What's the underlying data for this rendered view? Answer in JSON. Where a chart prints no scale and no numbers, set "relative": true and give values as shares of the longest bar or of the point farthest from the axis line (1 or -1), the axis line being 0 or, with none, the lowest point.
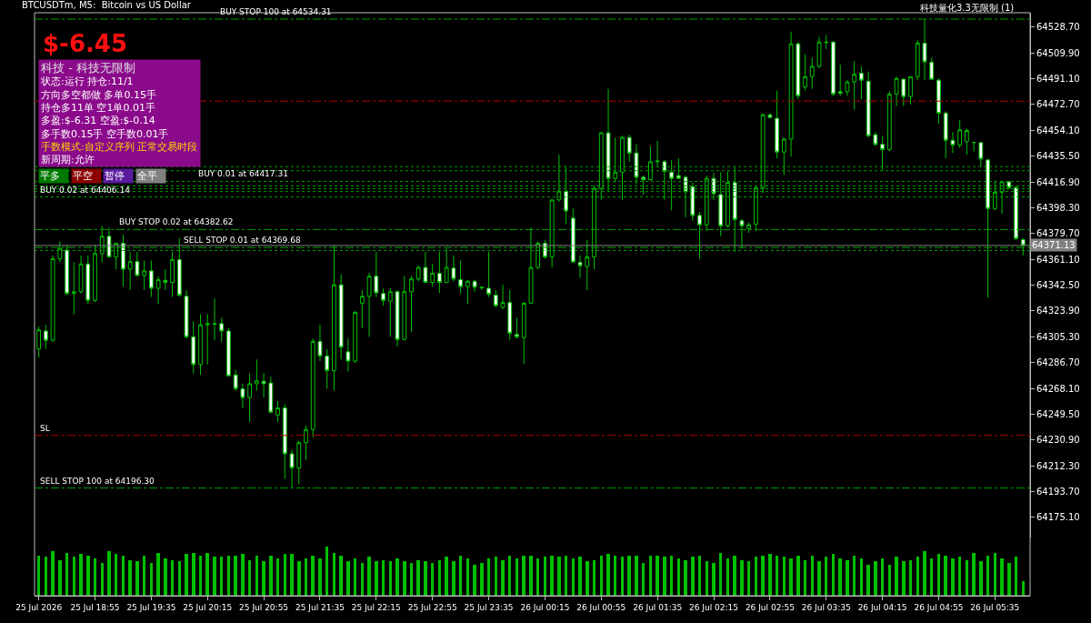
{
  "chart_data": [
    {
      "type": "candlestick",
      "title": "BTCUSDTm, M5:  Bitcoin vs US Dollar",
      "x": [
        "2026-07-25T18:15",
        "2026-07-25T18:20",
        "2026-07-25T18:25",
        "2026-07-25T18:30",
        "2026-07-25T18:35",
        "2026-07-25T18:40",
        "2026-07-25T18:45",
        "2026-07-25T18:50",
        "2026-07-25T18:55",
        "2026-07-25T19:00",
        "2026-07-25T19:05",
        "2026-07-25T19:10",
        "2026-07-25T19:15",
        "2026-07-25T19:20",
        "2026-07-25T19:25",
        "2026-07-25T19:30",
        "2026-07-25T19:35",
        "2026-07-25T19:40",
        "2026-07-25T19:45",
        "2026-07-25T19:50",
        "2026-07-25T19:55",
        "2026-07-25T20:00",
        "2026-07-25T20:05",
        "2026-07-25T20:10",
        "2026-07-25T20:15",
        "2026-07-25T20:20",
        "2026-07-25T20:25",
        "2026-07-25T20:30",
        "2026-07-25T20:35",
        "2026-07-25T20:40",
        "2026-07-25T20:45",
        "2026-07-25T20:50",
        "2026-07-25T20:55",
        "2026-07-25T21:00",
        "2026-07-25T21:05",
        "2026-07-25T21:10",
        "2026-07-25T21:15",
        "2026-07-25T21:20",
        "2026-07-25T21:25",
        "2026-07-25T21:30",
        "2026-07-25T21:35",
        "2026-07-25T21:40",
        "2026-07-25T21:45",
        "2026-07-25T21:50",
        "2026-07-25T21:55",
        "2026-07-25T22:00",
        "2026-07-25T22:05",
        "2026-07-25T22:10",
        "2026-07-25T22:15",
        "2026-07-25T22:20",
        "2026-07-25T22:25",
        "2026-07-25T22:30",
        "2026-07-25T22:35",
        "2026-07-25T22:40",
        "2026-07-25T22:45",
        "2026-07-25T22:50",
        "2026-07-25T22:55",
        "2026-07-25T23:00",
        "2026-07-25T23:05",
        "2026-07-25T23:10",
        "2026-07-25T23:15",
        "2026-07-25T23:20",
        "2026-07-25T23:25",
        "2026-07-25T23:30",
        "2026-07-25T23:35",
        "2026-07-25T23:40",
        "2026-07-25T23:45",
        "2026-07-25T23:50",
        "2026-07-25T23:55",
        "2026-07-26T00:00",
        "2026-07-26T00:05",
        "2026-07-26T00:10",
        "2026-07-26T00:15",
        "2026-07-26T00:20",
        "2026-07-26T00:25",
        "2026-07-26T00:30",
        "2026-07-26T00:35",
        "2026-07-26T00:40",
        "2026-07-26T00:45",
        "2026-07-26T00:50",
        "2026-07-26T00:55",
        "2026-07-26T01:00",
        "2026-07-26T01:05",
        "2026-07-26T01:10",
        "2026-07-26T01:15",
        "2026-07-26T01:20",
        "2026-07-26T01:25",
        "2026-07-26T01:30",
        "2026-07-26T01:35",
        "2026-07-26T01:40",
        "2026-07-26T01:45",
        "2026-07-26T01:50",
        "2026-07-26T01:55",
        "2026-07-26T02:00",
        "2026-07-26T02:05",
        "2026-07-26T02:10",
        "2026-07-26T02:15",
        "2026-07-26T02:20",
        "2026-07-26T02:25",
        "2026-07-26T02:30",
        "2026-07-26T02:35",
        "2026-07-26T02:40",
        "2026-07-26T02:45",
        "2026-07-26T02:50",
        "2026-07-26T02:55",
        "2026-07-26T03:00",
        "2026-07-26T03:05",
        "2026-07-26T03:10",
        "2026-07-26T03:15",
        "2026-07-26T03:20",
        "2026-07-26T03:25",
        "2026-07-26T03:30",
        "2026-07-26T03:35",
        "2026-07-26T03:40",
        "2026-07-26T03:45",
        "2026-07-26T03:50",
        "2026-07-26T03:55",
        "2026-07-26T04:00",
        "2026-07-26T04:05",
        "2026-07-26T04:10",
        "2026-07-26T04:15",
        "2026-07-26T04:20",
        "2026-07-26T04:25",
        "2026-07-26T04:30",
        "2026-07-26T04:35",
        "2026-07-26T04:40",
        "2026-07-26T04:45",
        "2026-07-26T04:50",
        "2026-07-26T04:55",
        "2026-07-26T05:00",
        "2026-07-26T05:05",
        "2026-07-26T05:10",
        "2026-07-26T05:15",
        "2026-07-26T05:20",
        "2026-07-26T05:25",
        "2026-07-26T05:30",
        "2026-07-26T05:35",
        "2026-07-26T05:40",
        "2026-07-26T05:45",
        "2026-07-26T05:50",
        "2026-07-26T05:55"
      ],
      "ohlc": [
        [
          64296.5,
          64312.8,
          64290.3,
          64310.3
        ],
        [
          64309.5,
          64314,
          64296.5,
          64302.8
        ],
        [
          64302.8,
          64364,
          64301.5,
          64361.5
        ],
        [
          64361.5,
          64374,
          64359,
          64369
        ],
        [
          64367.8,
          64371.5,
          64335.3,
          64336.5
        ],
        [
          64336.5,
          64359,
          64321.5,
          64337.8
        ],
        [
          64337.8,
          64364,
          64336.5,
          64357.8
        ],
        [
          64357.8,
          64364,
          64329,
          64331.5
        ],
        [
          64331.5,
          64371.5,
          64330.3,
          64365.3
        ],
        [
          64365.3,
          64385.3,
          64359,
          64377.8
        ],
        [
          64377.8,
          64384,
          64362.5,
          64362.8
        ],
        [
          64362.8,
          64372.8,
          64354,
          64372.8
        ],
        [
          64372.8,
          64379,
          64341.5,
          64354
        ],
        [
          64354,
          64366.5,
          64339,
          64359.5
        ],
        [
          64359.5,
          64366.5,
          64349,
          64349.5
        ],
        [
          64349.5,
          64360.3,
          64339,
          64352.8
        ],
        [
          64352.8,
          64360.3,
          64334,
          64340.3
        ],
        [
          64340.3,
          64349,
          64329,
          64346.5
        ],
        [
          64346,
          64354,
          64339,
          64344.5
        ],
        [
          64344.5,
          64366.5,
          64334,
          64361
        ],
        [
          64361,
          64376.5,
          64334,
          64335.3
        ],
        [
          64334.5,
          64339,
          64304,
          64305.3
        ],
        [
          64305.3,
          64316.5,
          64279,
          64285.3
        ],
        [
          64285.3,
          64321.5,
          64277.8,
          64314
        ],
        [
          64314,
          64321.5,
          64285.3,
          64314.8
        ],
        [
          64314.8,
          64332.8,
          64302.8,
          64314.5
        ],
        [
          64314.8,
          64319,
          64301.5,
          64309.5
        ],
        [
          64309.5,
          64311.5,
          64277,
          64277.2
        ],
        [
          64277.8,
          64281.5,
          64266.5,
          64267.8
        ],
        [
          64267.8,
          64271.5,
          64254,
          64261.5
        ],
        [
          64261.5,
          64279,
          64244,
          64271.5
        ],
        [
          64271.5,
          64289,
          64266.5,
          64273.5
        ],
        [
          64273.3,
          64279,
          64261.5,
          64271.5
        ],
        [
          64272,
          64276.5,
          64250.3,
          64251
        ],
        [
          64249,
          64259,
          64244,
          64254
        ],
        [
          64254,
          64256.5,
          64202.8,
          64221
        ],
        [
          64221,
          64224,
          64196.5,
          64210.8
        ],
        [
          64210.8,
          64230.3,
          64199,
          64229
        ],
        [
          64229,
          64241.5,
          64216.5,
          64238.5
        ],
        [
          64238.5,
          64304,
          64232.8,
          64302
        ],
        [
          64302,
          64314,
          64287.8,
          64291.5
        ],
        [
          64291.5,
          64296.5,
          64267.8,
          64281
        ],
        [
          64281,
          64371.5,
          64266.5,
          64342.8
        ],
        [
          64342.8,
          64350.3,
          64289,
          64297.8
        ],
        [
          64294.5,
          64304,
          64280.3,
          64287.8
        ],
        [
          64287.8,
          64324,
          64286.5,
          64322.8
        ],
        [
          64329.5,
          64339,
          64311.5,
          64334.5
        ],
        [
          64334.5,
          64351.5,
          64305.3,
          64349
        ],
        [
          64349,
          64366.5,
          64334,
          64337
        ],
        [
          64336.5,
          64340.3,
          64327.8,
          64331.5
        ],
        [
          64331,
          64340.3,
          64305.3,
          64337.8
        ],
        [
          64337.8,
          64339,
          64298.5,
          64303.3
        ],
        [
          64303.3,
          64349,
          64302.8,
          64337.8
        ],
        [
          64337.8,
          64349,
          64309,
          64347
        ],
        [
          64347,
          64356.5,
          64345.3,
          64355.3
        ],
        [
          64355.3,
          64366.5,
          64344,
          64344.5
        ],
        [
          64344.5,
          64357.8,
          64341.5,
          64351
        ],
        [
          64351,
          64366.5,
          64337,
          64344.5
        ],
        [
          64344.5,
          64369,
          64344,
          64355.3
        ],
        [
          64354.8,
          64364,
          64345.3,
          64347
        ],
        [
          64346.5,
          64360.3,
          64336.5,
          64341.5
        ],
        [
          64341.5,
          64346,
          64329,
          64345.3
        ],
        [
          64345.3,
          64346.5,
          64337.8,
          64341
        ],
        [
          64340.8,
          64341.5,
          64339,
          64341
        ],
        [
          64340.3,
          64366.5,
          64334,
          64336
        ],
        [
          64335.3,
          64339,
          64326.5,
          64327.8
        ],
        [
          64326.5,
          64342.8,
          64325.3,
          64330
        ],
        [
          64330,
          64339,
          64302.8,
          64307.8
        ],
        [
          64307,
          64319,
          64304,
          64305.3
        ],
        [
          64304.8,
          64330.3,
          64286,
          64329.5
        ],
        [
          64329.5,
          64384,
          64329,
          64355.3
        ],
        [
          64355.3,
          64374,
          64354,
          64372.8
        ],
        [
          64372.8,
          64375.3,
          64361.5,
          64362.8
        ],
        [
          64362.8,
          64404,
          64355.3,
          64404
        ],
        [
          64404,
          64436.5,
          64402.8,
          64410.3
        ],
        [
          64410.3,
          64427.8,
          64386.5,
          64396
        ],
        [
          64390.8,
          64397.8,
          64359,
          64359.2
        ],
        [
          64359,
          64364,
          64347.8,
          64356.5
        ],
        [
          64356,
          64375.3,
          64339,
          64362.8
        ],
        [
          64362.8,
          64414,
          64354,
          64412.3
        ],
        [
          64412.3,
          64452.8,
          64404,
          64452.3
        ],
        [
          64452.3,
          64484,
          64410.3,
          64419.5
        ],
        [
          64419.5,
          64449,
          64416.5,
          64424
        ],
        [
          64424,
          64450.3,
          64404,
          64449
        ],
        [
          64449,
          64451,
          64431.5,
          64437.8
        ],
        [
          64437.8,
          64444,
          64415.3,
          64420.3
        ],
        [
          64420.3,
          64421.5,
          64407.8,
          64418.5
        ],
        [
          64418.5,
          64442.8,
          64417.8,
          64431.5
        ],
        [
          64431.5,
          64446.5,
          64427.8,
          64432
        ],
        [
          64431.5,
          64432.8,
          64404,
          64424.5
        ],
        [
          64424,
          64432.8,
          64396.5,
          64419.5
        ],
        [
          64421.5,
          64434,
          64419,
          64419.5
        ],
        [
          64420.3,
          64421.5,
          64391.5,
          64409.8
        ],
        [
          64413.5,
          64416.5,
          64389,
          64392.8
        ],
        [
          64392.8,
          64395.3,
          64361.5,
          64386
        ],
        [
          64386,
          64421.5,
          64381.5,
          64419.5
        ],
        [
          64419.5,
          64423.5,
          64404,
          64408.5
        ],
        [
          64407.8,
          64424,
          64377.8,
          64385.3
        ],
        [
          64385.3,
          64424.5,
          64384,
          64416.5
        ],
        [
          64416.5,
          64427.8,
          64366.5,
          64389.8
        ],
        [
          64389,
          64390.3,
          64369,
          64385.3
        ],
        [
          64383.3,
          64387.8,
          64380.3,
          64386
        ],
        [
          64386.5,
          64414,
          64381.5,
          64412.8
        ],
        [
          64412.8,
          64466.5,
          64409,
          64465.3
        ],
        [
          64465.3,
          64466.5,
          64462.8,
          64463.3
        ],
        [
          64462.8,
          64482.8,
          64434,
          64438.5
        ],
        [
          64438.5,
          64449,
          64422,
          64447.8
        ],
        [
          64447.8,
          64525.3,
          64435.3,
          64516.5
        ],
        [
          64516.5,
          64517.8,
          64476.5,
          64479
        ],
        [
          64485.3,
          64509,
          64482.8,
          64492.8
        ],
        [
          64492.8,
          64506.5,
          64484,
          64500.3
        ],
        [
          64500.3,
          64521.5,
          64499,
          64517.8
        ],
        [
          64517.8,
          64522.8,
          64512.8,
          64517.5
        ],
        [
          64517.8,
          64518.5,
          64479,
          64480.3
        ],
        [
          64482,
          64501.5,
          64479,
          64480.8
        ],
        [
          64482,
          64490.3,
          64479,
          64489
        ],
        [
          64489,
          64504,
          64469,
          64494.5
        ],
        [
          64495.3,
          64500.3,
          64476.5,
          64490.3
        ],
        [
          64489.5,
          64496.5,
          64449,
          64450.3
        ],
        [
          64451,
          64452.8,
          64442.8,
          64444
        ],
        [
          64444,
          64450.3,
          64425.3,
          64440.3
        ],
        [
          64440.3,
          64482,
          64439,
          64480.3
        ],
        [
          64480.3,
          64492.8,
          64471.5,
          64491.5
        ],
        [
          64491,
          64491.5,
          64471.5,
          64478.5
        ],
        [
          64478.5,
          64492.8,
          64472.8,
          64492.8
        ],
        [
          64492.8,
          64519,
          64490.3,
          64517
        ],
        [
          64517,
          64534,
          64490.3,
          64503.5
        ],
        [
          64503.3,
          64506.5,
          64490.3,
          64491
        ],
        [
          64490.3,
          64491.5,
          64459,
          64466.5
        ],
        [
          64466.5,
          64467.8,
          64434,
          64447
        ],
        [
          64447,
          64452.8,
          64437.8,
          64443.5
        ],
        [
          64443.5,
          64461.5,
          64441.5,
          64454.5
        ],
        [
          64446,
          64455.3,
          64436.5,
          64454
        ],
        [
          64445.3,
          64446,
          64439,
          64445.5
        ],
        [
          64445.3,
          64445.3,
          64427.8,
          64433.5
        ],
        [
          64432.8,
          64432.8,
          64333.5,
          64397.8
        ],
        [
          64397.8,
          64417.8,
          64396.5,
          64409.5
        ],
        [
          64409.5,
          64417.8,
          64394,
          64417
        ],
        [
          64417,
          64417.8,
          64411.5,
          64412.8
        ],
        [
          64412.8,
          64414,
          64375.3,
          64376
        ],
        [
          64375.3,
          64376.5,
          64364,
          64371.13
        ]
      ],
      "xlim": [
        "2026-07-25T18:12",
        "2026-07-26T06:00"
      ],
      "xticks": [
        {
          "value": "2026-07-25T18:15",
          "label": "25 Jul 2026"
        },
        {
          "value": "2026-07-25T18:55",
          "label": "25 Jul 18:55"
        },
        {
          "value": "2026-07-25T19:35",
          "label": "25 Jul 19:35"
        },
        {
          "value": "2026-07-25T20:15",
          "label": "25 Jul 20:15"
        },
        {
          "value": "2026-07-25T20:55",
          "label": "25 Jul 20:55"
        },
        {
          "value": "2026-07-25T21:35",
          "label": "25 Jul 21:35"
        },
        {
          "value": "2026-07-25T22:15",
          "label": "25 Jul 22:15"
        },
        {
          "value": "2026-07-25T22:55",
          "label": "25 Jul 22:55"
        },
        {
          "value": "2026-07-25T23:35",
          "label": "25 Jul 23:35"
        },
        {
          "value": "2026-07-26T00:15",
          "label": "26 Jul 00:15"
        },
        {
          "value": "2026-07-26T00:55",
          "label": "26 Jul 00:55"
        },
        {
          "value": "2026-07-26T01:35",
          "label": "26 Jul 01:35"
        },
        {
          "value": "2026-07-26T02:15",
          "label": "26 Jul 02:15"
        },
        {
          "value": "2026-07-26T02:55",
          "label": "26 Jul 02:55"
        },
        {
          "value": "2026-07-26T03:35",
          "label": "26 Jul 03:35"
        },
        {
          "value": "2026-07-26T04:15",
          "label": "26 Jul 04:15"
        },
        {
          "value": "2026-07-26T04:55",
          "label": "26 Jul 04:55"
        },
        {
          "value": "2026-07-26T05:35",
          "label": "26 Jul 05:35"
        }
      ],
      "ylim": [
        64160.7,
        64538.9
      ],
      "yticks": [
        {
          "value": 64528.7,
          "label": "64528.70"
        },
        {
          "value": 64509.9,
          "label": "64509.90"
        },
        {
          "value": 64491.1,
          "label": "64491.10"
        },
        {
          "value": 64472.7,
          "label": "64472.70"
        },
        {
          "value": 64454.1,
          "label": "64454.10"
        },
        {
          "value": 64435.5,
          "label": "64435.50"
        },
        {
          "value": 64416.9,
          "label": "64416.90"
        },
        {
          "value": 64398.3,
          "label": "64398.30"
        },
        {
          "value": 64379.7,
          "label": "64379.70"
        },
        {
          "value": 64361.1,
          "label": "64361.10"
        },
        {
          "value": 64342.5,
          "label": "64342.50"
        },
        {
          "value": 64323.9,
          "label": "64323.90"
        },
        {
          "value": 64305.3,
          "label": "64305.30"
        },
        {
          "value": 64286.7,
          "label": "64286.70"
        },
        {
          "value": 64268.1,
          "label": "64268.10"
        },
        {
          "value": 64249.5,
          "label": "64249.50"
        },
        {
          "value": 64230.9,
          "label": "64230.90"
        },
        {
          "value": 64212.3,
          "label": "64212.30"
        },
        {
          "value": 64193.7,
          "label": "64193.70"
        },
        {
          "value": 64175.1,
          "label": "64175.10"
        }
      ],
      "ref_lines": [
        {
          "axis": "y",
          "value": 64534.31,
          "label": "BUY STOP 100 at 64534.31",
          "color": "#00a000",
          "line_style": "dashed"
        },
        {
          "axis": "y",
          "value": 64475.2,
          "color": "#b00000",
          "line_style": "dashed"
        },
        {
          "axis": "y",
          "value": 64428,
          "color": "#00a000",
          "line_style": "dotted"
        },
        {
          "axis": "y",
          "value": 64425,
          "color": "#00a000",
          "line_style": "dotted"
        },
        {
          "axis": "y",
          "value": 64417.31,
          "label": "BUY 0.01 at 64417.31",
          "color": "#00a000",
          "line_style": "dotted"
        },
        {
          "axis": "y",
          "value": 64414,
          "color": "#00a000",
          "line_style": "dotted"
        },
        {
          "axis": "y",
          "value": 64412,
          "color": "#00a000",
          "line_style": "dotted"
        },
        {
          "axis": "y",
          "value": 64410,
          "color": "#00a000",
          "line_style": "dotted"
        },
        {
          "axis": "y",
          "value": 64406.14,
          "label": "BUY 0.02 at 64406.14",
          "color": "#00a000",
          "line_style": "dotted"
        },
        {
          "axis": "y",
          "value": 64382.62,
          "label": "BUY STOP 0.02 at 64382.62",
          "color": "#00a000",
          "line_style": "dashed"
        },
        {
          "axis": "y",
          "value": 64371.13,
          "label": "64371.13",
          "color": "#808080",
          "line_style": "solid"
        },
        {
          "axis": "y",
          "value": 64369.68,
          "label": "SELL STOP 0.01 at 64369.68",
          "color": "#00a000",
          "line_style": "dashed"
        },
        {
          "axis": "y",
          "value": 64367.5,
          "color": "#00a000",
          "line_style": "dotted"
        },
        {
          "axis": "y",
          "value": 64234.2,
          "label": "SL",
          "color": "#b00000",
          "line_style": "dashed"
        },
        {
          "axis": "y",
          "value": 64196.3,
          "label": "SELL STOP 100 at 64196.30",
          "color": "#00a000",
          "line_style": "dashed"
        }
      ],
      "annotations": [
        "科技量化3.3无限制 (1)",
        "$-6.45",
        "科技 - 科技无限制",
        "状态:运行 持仓:11/1",
        "方向多空都做 多单0.15手",
        "持仓多11单 空1单0.01手",
        "多盈:$-6.31 空盈:$-0.14",
        "多手数0.15手 空手数0.01手",
        "手数模式:自定义序列 正常交易时段",
        "新周期:允许",
        "平多",
        "平空",
        "暂停",
        "全平"
      ],
      "grid": false
    },
    {
      "type": "bar",
      "relative": true,
      "color": "#00c000",
      "categories": [
        null,
        null,
        null,
        null,
        null,
        null,
        null,
        null,
        null,
        null,
        null,
        null,
        null,
        null,
        null,
        null,
        null,
        null,
        null,
        null,
        null,
        null,
        null,
        null,
        null,
        null,
        null,
        null,
        null,
        null,
        null,
        null,
        null,
        null,
        null,
        null,
        null,
        null,
        null,
        null,
        null,
        null,
        null,
        null,
        null,
        null,
        null,
        null,
        null,
        null,
        null,
        null,
        null,
        null,
        null,
        null,
        null,
        null,
        null,
        null,
        null,
        null,
        null,
        null,
        null,
        null,
        null,
        null,
        null,
        null,
        null,
        null,
        null,
        null,
        null,
        null,
        null,
        null,
        null,
        null,
        null,
        null,
        null,
        null,
        null,
        null,
        null,
        null,
        null,
        null,
        null,
        null,
        null,
        null,
        null,
        null,
        null,
        null,
        null,
        null,
        null,
        null,
        null,
        null,
        null,
        null,
        null,
        null,
        null,
        null,
        null,
        null,
        null,
        null,
        null,
        null,
        null,
        null,
        null,
        null,
        null,
        null,
        null,
        null,
        null,
        null,
        null,
        null,
        null,
        null,
        null,
        null,
        null,
        null,
        null,
        null,
        null,
        null,
        null,
        null,
        null
      ],
      "values": [
        0.82,
        0.79,
        0.91,
        0.73,
        0.88,
        0.79,
        0.85,
        0.82,
        0.76,
        0.67,
        0.91,
        0.85,
        0.82,
        0.73,
        0.7,
        0.82,
        0.67,
        0.88,
        0.76,
        0.73,
        0.7,
        0.85,
        0.88,
        0.82,
        0.88,
        0.79,
        0.79,
        0.82,
        0.82,
        0.85,
        0.73,
        0.82,
        0.7,
        0.82,
        0.76,
        0.85,
        0.85,
        0.7,
        0.76,
        0.82,
        0.76,
        1.0,
        0.88,
        0.82,
        0.7,
        0.76,
        0.67,
        0.79,
        0.7,
        0.73,
        0.7,
        0.76,
        0.7,
        0.67,
        0.73,
        0.7,
        0.67,
        0.73,
        0.79,
        0.7,
        0.82,
        0.76,
        0.64,
        0.67,
        0.76,
        0.79,
        0.73,
        0.82,
        0.76,
        0.82,
        0.82,
        0.76,
        0.79,
        0.82,
        0.79,
        0.82,
        0.76,
        0.79,
        0.7,
        0.73,
        0.82,
        0.85,
        0.82,
        0.79,
        0.82,
        0.82,
        0.67,
        0.82,
        0.82,
        0.79,
        0.82,
        0.76,
        0.73,
        0.79,
        0.82,
        0.7,
        0.67,
        0.88,
        0.76,
        0.82,
        0.73,
        0.7,
        0.79,
        0.82,
        0.85,
        0.82,
        0.79,
        0.76,
        0.82,
        0.73,
        0.82,
        0.7,
        0.79,
        0.85,
        0.76,
        0.73,
        0.82,
        0.76,
        0.64,
        0.7,
        0.76,
        0.64,
        0.79,
        0.7,
        0.73,
        0.79,
        0.91,
        0.76,
        0.85,
        0.82,
        0.76,
        0.79,
        0.73,
        0.88,
        0.7,
        0.82,
        0.88,
        0.76,
        0.67,
        0.79,
        0.3
      ]
    }
  ]
}
